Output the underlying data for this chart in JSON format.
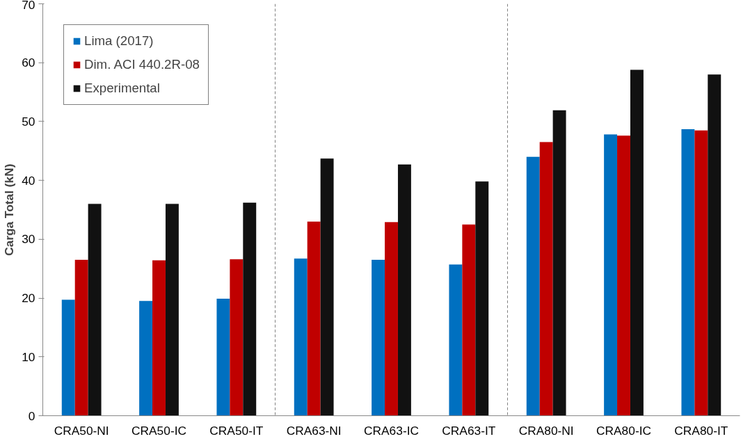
{
  "chart_data": {
    "type": "bar",
    "ylabel": "Carga Total (kN)",
    "categories": [
      "CRA50-NI",
      "CRA50-IC",
      "CRA50-IT",
      "CRA63-NI",
      "CRA63-IC",
      "CRA63-IT",
      "CRA80-NI",
      "CRA80-IC",
      "CRA80-IT"
    ],
    "series": [
      {
        "name": "Lima (2017)",
        "color": "#0070c0",
        "values": [
          19.7,
          19.5,
          19.9,
          26.7,
          26.5,
          25.7,
          44.0,
          47.8,
          48.7
        ]
      },
      {
        "name": "Dim. ACI 440.2R-08",
        "color": "#c00000",
        "values": [
          26.5,
          26.4,
          26.6,
          33.0,
          32.9,
          32.5,
          46.5,
          47.6,
          48.5
        ]
      },
      {
        "name": "Experimental",
        "color": "#111111",
        "values": [
          36.0,
          36.0,
          36.2,
          43.7,
          42.7,
          39.8,
          51.9,
          58.8,
          58.0
        ]
      }
    ],
    "ylim": [
      0,
      70
    ],
    "yticks": [
      0,
      10,
      20,
      30,
      40,
      50,
      60,
      70
    ],
    "grid": false,
    "legend": "top left"
  }
}
